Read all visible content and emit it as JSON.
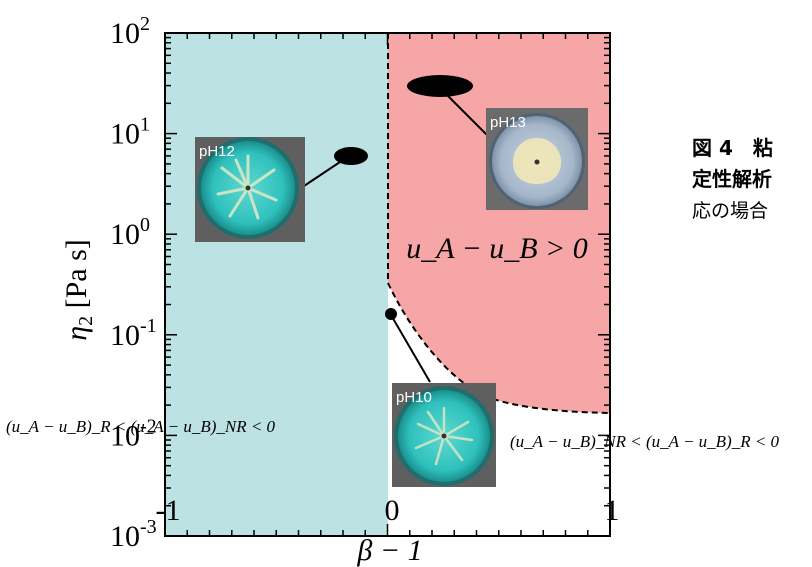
{
  "chart_data": {
    "type": "phase-diagram",
    "xlabel": "β − 1",
    "ylabel_symbol": "η",
    "ylabel_subscript": "2",
    "ylabel_unit": " [Pa s]",
    "xlim": [
      -1,
      1
    ],
    "ylim_log10": [
      -3,
      2
    ],
    "x_ticks": [
      {
        "value": -1,
        "label": "-1"
      },
      {
        "value": 0,
        "label": "0"
      },
      {
        "value": 1,
        "label": "1"
      }
    ],
    "y_ticks": [
      {
        "exp": 2,
        "base": "10",
        "sup": "2"
      },
      {
        "exp": 1,
        "base": "10",
        "sup": "1"
      },
      {
        "exp": 0,
        "base": "10",
        "sup": "0"
      },
      {
        "exp": -1,
        "base": "10",
        "sup": "-1"
      },
      {
        "exp": -2,
        "base": "10",
        "sup": "-2"
      },
      {
        "exp": -3,
        "base": "10",
        "sup": "-3"
      }
    ],
    "regions": [
      {
        "id": "cyan",
        "color": "#bce2e4",
        "x_range": [
          -1,
          0
        ],
        "label": "(u_A − u_B)_R < (u_A − u_B)_NR < 0"
      },
      {
        "id": "red",
        "color": "#f6a6a7",
        "label": "u_A − u_B > 0"
      },
      {
        "id": "white",
        "color": "#ffffff",
        "label": "(u_A − u_B)_NR < (u_A − u_B)_R < 0"
      }
    ],
    "boundary_curve": {
      "description": "dashed boundary between red and white regions",
      "points": [
        [
          0,
          -1.1
        ],
        [
          0.15,
          -1.5
        ],
        [
          0.3,
          -1.82
        ],
        [
          0.5,
          -2.1
        ],
        [
          0.7,
          -2.28
        ],
        [
          1.0,
          -2.35
        ]
      ]
    },
    "markers": [
      {
        "name": "pH12",
        "x": -0.17,
        "log10_y": 0.65
      },
      {
        "name": "pH13",
        "x": 0.17,
        "log10_y": 1.42
      },
      {
        "name": "pH10",
        "x": 0.0,
        "log10_y": -1.18
      }
    ],
    "region_label_main": "u_A − u_B > 0",
    "cond_left": "(u_A − u_B)_R < (u_A − u_B)_NR < 0",
    "cond_right": "(u_A − u_B)_NR < (u_A − u_B)_R < 0"
  },
  "photos": {
    "ph12": {
      "label": "pH12"
    },
    "ph13": {
      "label": "pH13"
    },
    "ph10": {
      "label": "pH10"
    }
  },
  "caption": {
    "line1": "図 4　粘",
    "line2": "定性解析",
    "line3": "応の場合"
  }
}
